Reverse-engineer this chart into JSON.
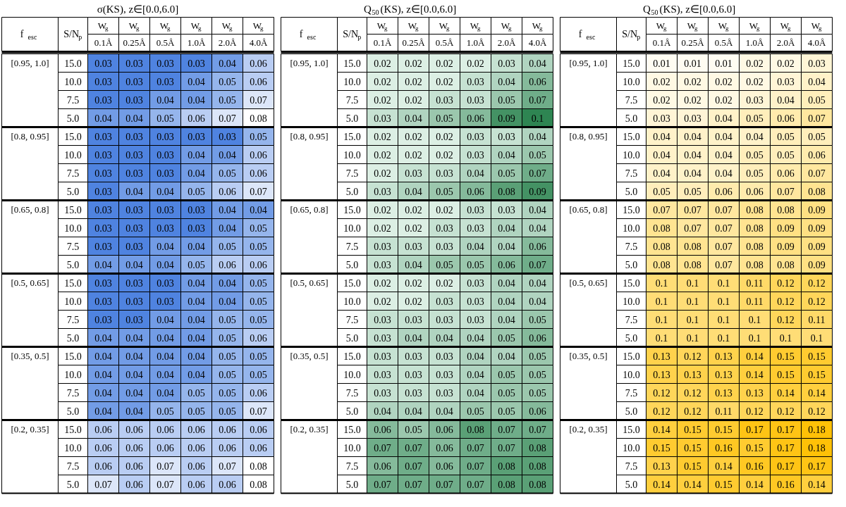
{
  "chart_data": [
    {
      "type": "heatmap",
      "title": "σ(KS), z∈[0.0,6.0]",
      "annotations": [
        "f$_{esc}$",
        "S/N$_{p}$"
      ],
      "data_labels": true,
      "categories": [
        "W$_{g}$\n0.1Å",
        "W$_{g}$\n0.25Å",
        "W$_{g}$\n0.5Å",
        "W$_{g}$\n1.0Å",
        "W$_{g}$\n2.0Å",
        "W$_{g}$\n4.0Å"
      ],
      "y_categories": [
        "15.0",
        "10.0",
        "7.5",
        "5.0",
        "15.0",
        "10.0",
        "7.5",
        "5.0",
        "15.0",
        "10.0",
        "7.5",
        "5.0",
        "15.0",
        "10.0",
        "7.5",
        "5.0",
        "15.0",
        "10.0",
        "7.5",
        "5.0",
        "15.0",
        "10.0",
        "7.5",
        "5.0"
      ],
      "y2_categories": [
        "[0.95, 1.0]",
        null,
        null,
        null,
        "[0.8, 0.95]",
        null,
        null,
        null,
        "[0.65, 0.8]",
        null,
        null,
        null,
        "[0.5, 0.65]",
        null,
        null,
        null,
        "[0.35, 0.5]",
        null,
        null,
        null,
        "[0.2, 0.35]",
        null,
        null,
        null
      ],
      "cells": [
        [
          0.03,
          0.03,
          0.03,
          0.03,
          0.04,
          0.06
        ],
        [
          0.03,
          0.03,
          0.03,
          0.04,
          0.05,
          0.06
        ],
        [
          0.03,
          0.03,
          0.04,
          0.04,
          0.05,
          0.07
        ],
        [
          0.04,
          0.04,
          0.05,
          0.06,
          0.07,
          0.08
        ],
        [
          0.03,
          0.03,
          0.03,
          0.03,
          0.03,
          0.05
        ],
        [
          0.03,
          0.03,
          0.03,
          0.04,
          0.04,
          0.06
        ],
        [
          0.03,
          0.03,
          0.03,
          0.04,
          0.05,
          0.06
        ],
        [
          0.03,
          0.04,
          0.04,
          0.05,
          0.06,
          0.07
        ],
        [
          0.03,
          0.03,
          0.03,
          0.03,
          0.04,
          0.04
        ],
        [
          0.03,
          0.03,
          0.03,
          0.03,
          0.04,
          0.05
        ],
        [
          0.03,
          0.03,
          0.04,
          0.04,
          0.05,
          0.05
        ],
        [
          0.04,
          0.04,
          0.04,
          0.05,
          0.06,
          0.06
        ],
        [
          0.03,
          0.03,
          0.03,
          0.04,
          0.04,
          0.05
        ],
        [
          0.03,
          0.03,
          0.03,
          0.04,
          0.04,
          0.05
        ],
        [
          0.03,
          0.03,
          0.04,
          0.04,
          0.05,
          0.05
        ],
        [
          0.04,
          0.04,
          0.04,
          0.04,
          0.05,
          0.06
        ],
        [
          0.04,
          0.04,
          0.04,
          0.04,
          0.05,
          0.05
        ],
        [
          0.04,
          0.04,
          0.04,
          0.04,
          0.05,
          0.05
        ],
        [
          0.04,
          0.04,
          0.04,
          0.05,
          0.05,
          0.06
        ],
        [
          0.04,
          0.04,
          0.05,
          0.05,
          0.05,
          0.07
        ],
        [
          0.06,
          0.06,
          0.06,
          0.06,
          0.06,
          0.06
        ],
        [
          0.06,
          0.06,
          0.06,
          0.06,
          0.06,
          0.06
        ],
        [
          0.06,
          0.06,
          0.07,
          0.06,
          0.07,
          0.08
        ],
        [
          0.07,
          0.06,
          0.07,
          0.06,
          0.06,
          0.08
        ]
      ]
    },
    {
      "type": "heatmap",
      "title": "Q$_{50}$(KS), z∈[0.0,6.0]",
      "annotations": [
        "f$_{esc}$",
        "S/N$_{p}$"
      ],
      "data_labels": true,
      "categories": [
        "W$_{g}$\n0.1Å",
        "W$_{g}$\n0.25Å",
        "W$_{g}$\n0.5Å",
        "W$_{g}$\n1.0Å",
        "W$_{g}$\n2.0Å",
        "W$_{g}$\n4.0Å"
      ],
      "y_categories": [
        "15.0",
        "10.0",
        "7.5",
        "5.0",
        "15.0",
        "10.0",
        "7.5",
        "5.0",
        "15.0",
        "10.0",
        "7.5",
        "5.0",
        "15.0",
        "10.0",
        "7.5",
        "5.0",
        "15.0",
        "10.0",
        "7.5",
        "5.0",
        "15.0",
        "10.0",
        "7.5",
        "5.0"
      ],
      "y2_categories": [
        "[0.95, 1.0]",
        null,
        null,
        null,
        "[0.8, 0.95]",
        null,
        null,
        null,
        "[0.65, 0.8]",
        null,
        null,
        null,
        "[0.5, 0.65]",
        null,
        null,
        null,
        "[0.35, 0.5]",
        null,
        null,
        null,
        "[0.2, 0.35]",
        null,
        null,
        null
      ],
      "cells": [
        [
          0.02,
          0.02,
          0.02,
          0.02,
          0.03,
          0.04
        ],
        [
          0.02,
          0.02,
          0.02,
          0.03,
          0.04,
          0.06
        ],
        [
          0.02,
          0.02,
          0.03,
          0.03,
          0.05,
          0.07
        ],
        [
          0.03,
          0.04,
          0.05,
          0.06,
          0.09,
          0.1
        ],
        [
          0.02,
          0.02,
          0.02,
          0.03,
          0.03,
          0.04
        ],
        [
          0.02,
          0.02,
          0.02,
          0.03,
          0.04,
          0.05
        ],
        [
          0.02,
          0.03,
          0.03,
          0.04,
          0.05,
          0.07
        ],
        [
          0.03,
          0.04,
          0.05,
          0.06,
          0.08,
          0.09
        ],
        [
          0.02,
          0.02,
          0.02,
          0.03,
          0.03,
          0.04
        ],
        [
          0.02,
          0.02,
          0.03,
          0.03,
          0.04,
          0.04
        ],
        [
          0.03,
          0.03,
          0.03,
          0.04,
          0.04,
          0.06
        ],
        [
          0.03,
          0.04,
          0.05,
          0.05,
          0.06,
          0.07
        ],
        [
          0.02,
          0.02,
          0.02,
          0.03,
          0.04,
          0.04
        ],
        [
          0.02,
          0.02,
          0.03,
          0.03,
          0.04,
          0.04
        ],
        [
          0.03,
          0.03,
          0.03,
          0.03,
          0.04,
          0.05
        ],
        [
          0.03,
          0.04,
          0.04,
          0.04,
          0.05,
          0.06
        ],
        [
          0.03,
          0.03,
          0.03,
          0.04,
          0.04,
          0.05
        ],
        [
          0.03,
          0.03,
          0.03,
          0.04,
          0.05,
          0.05
        ],
        [
          0.03,
          0.03,
          0.03,
          0.04,
          0.05,
          0.05
        ],
        [
          0.04,
          0.04,
          0.04,
          0.05,
          0.05,
          0.06
        ],
        [
          0.06,
          0.05,
          0.06,
          0.08,
          0.07,
          0.07
        ],
        [
          0.07,
          0.07,
          0.06,
          0.07,
          0.07,
          0.08
        ],
        [
          0.06,
          0.07,
          0.06,
          0.07,
          0.08,
          0.08
        ],
        [
          0.07,
          0.07,
          0.07,
          0.07,
          0.08,
          0.08
        ]
      ]
    },
    {
      "type": "heatmap",
      "title": "Q$_{50}$(KS), z∈[0.0,6.0]",
      "annotations": [
        "f$_{esc}$",
        "S/N$_{p}$"
      ],
      "data_labels": true,
      "categories": [
        "W$_{g}$\n0.1Å",
        "W$_{g}$\n0.25Å",
        "W$_{g}$\n0.5Å",
        "W$_{g}$\n1.0Å",
        "W$_{g}$\n2.0Å",
        "W$_{g}$\n4.0Å"
      ],
      "y_categories": [
        "15.0",
        "10.0",
        "7.5",
        "5.0",
        "15.0",
        "10.0",
        "7.5",
        "5.0",
        "15.0",
        "10.0",
        "7.5",
        "5.0",
        "15.0",
        "10.0",
        "7.5",
        "5.0",
        "15.0",
        "10.0",
        "7.5",
        "5.0",
        "15.0",
        "10.0",
        "7.5",
        "5.0"
      ],
      "y2_categories": [
        "[0.95, 1.0]",
        null,
        null,
        null,
        "[0.8, 0.95]",
        null,
        null,
        null,
        "[0.65, 0.8]",
        null,
        null,
        null,
        "[0.5, 0.65]",
        null,
        null,
        null,
        "[0.35, 0.5]",
        null,
        null,
        null,
        "[0.2, 0.35]",
        null,
        null,
        null
      ],
      "cells": [
        [
          0.01,
          0.01,
          0.01,
          0.02,
          0.02,
          0.03
        ],
        [
          0.02,
          0.02,
          0.02,
          0.02,
          0.03,
          0.04
        ],
        [
          0.02,
          0.02,
          0.02,
          0.03,
          0.04,
          0.05
        ],
        [
          0.03,
          0.03,
          0.04,
          0.05,
          0.06,
          0.07
        ],
        [
          0.04,
          0.04,
          0.04,
          0.04,
          0.05,
          0.05
        ],
        [
          0.04,
          0.04,
          0.04,
          0.05,
          0.05,
          0.06
        ],
        [
          0.04,
          0.04,
          0.04,
          0.05,
          0.06,
          0.07
        ],
        [
          0.05,
          0.05,
          0.06,
          0.06,
          0.07,
          0.08
        ],
        [
          0.07,
          0.07,
          0.07,
          0.08,
          0.08,
          0.09
        ],
        [
          0.08,
          0.07,
          0.07,
          0.08,
          0.09,
          0.09
        ],
        [
          0.08,
          0.08,
          0.07,
          0.08,
          0.09,
          0.09
        ],
        [
          0.08,
          0.08,
          0.07,
          0.08,
          0.08,
          0.09
        ],
        [
          0.1,
          0.1,
          0.1,
          0.11,
          0.12,
          0.12
        ],
        [
          0.1,
          0.1,
          0.1,
          0.11,
          0.12,
          0.12
        ],
        [
          0.1,
          0.1,
          0.1,
          0.1,
          0.12,
          0.11
        ],
        [
          0.1,
          0.1,
          0.1,
          0.1,
          0.1,
          0.1
        ],
        [
          0.13,
          0.12,
          0.13,
          0.14,
          0.15,
          0.15
        ],
        [
          0.13,
          0.13,
          0.13,
          0.14,
          0.15,
          0.15
        ],
        [
          0.12,
          0.12,
          0.13,
          0.13,
          0.14,
          0.14
        ],
        [
          0.12,
          0.12,
          0.11,
          0.12,
          0.12,
          0.12
        ],
        [
          0.14,
          0.15,
          0.15,
          0.17,
          0.17,
          0.18
        ],
        [
          0.15,
          0.15,
          0.16,
          0.15,
          0.17,
          0.18
        ],
        [
          0.13,
          0.15,
          0.14,
          0.16,
          0.17,
          0.17
        ],
        [
          0.14,
          0.14,
          0.15,
          0.14,
          0.16,
          0.14
        ]
      ]
    }
  ]
}
